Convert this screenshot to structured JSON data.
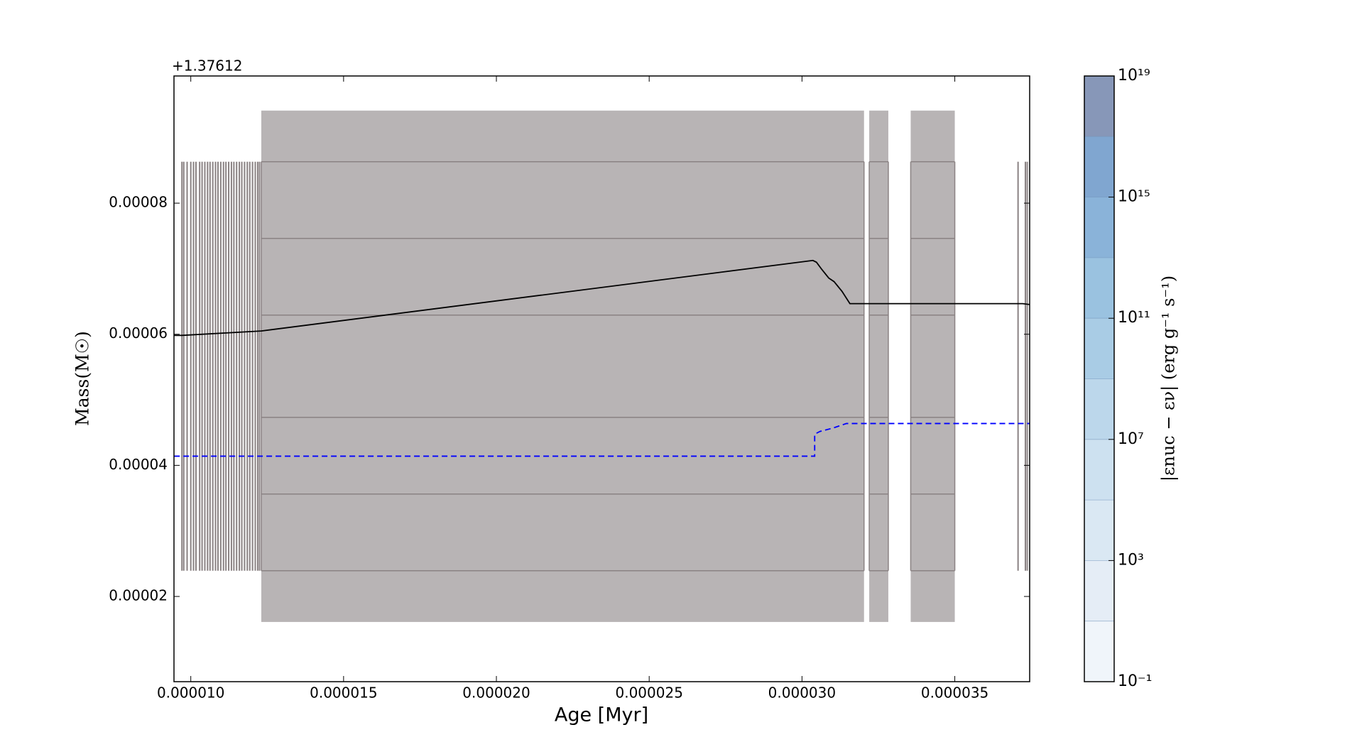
{
  "chart_data": {
    "type": "kippenhahn",
    "xlabel": "Age [Myr]",
    "ylabel": "Mass(M☉)",
    "offset_label": "+1.37612",
    "xlim": [
      9.45e-06,
      3.745e-05
    ],
    "ylim": [
      7e-06,
      9.94e-05
    ],
    "xticks": [
      {
        "value": 1e-05,
        "label": "0.000010"
      },
      {
        "value": 1.5e-05,
        "label": "0.000015"
      },
      {
        "value": 2e-05,
        "label": "0.000020"
      },
      {
        "value": 2.5e-05,
        "label": "0.000025"
      },
      {
        "value": 3e-05,
        "label": "0.000030"
      },
      {
        "value": 3.5e-05,
        "label": "0.000035"
      }
    ],
    "yticks": [
      {
        "value": 2e-05,
        "label": "0.00002"
      },
      {
        "value": 4e-05,
        "label": "0.00004"
      },
      {
        "value": 6e-05,
        "label": "0.00006"
      },
      {
        "value": 8e-05,
        "label": "0.00008"
      }
    ],
    "region_color": "#b8b4b5",
    "contour_color": "#8a8283",
    "regions": [
      {
        "x": [
          1.2307e-05,
          3.203e-05
        ],
        "y": [
          1.611e-05,
          9.412e-05
        ]
      },
      {
        "x": [
          3.22e-05,
          3.2825e-05
        ],
        "y": [
          1.611e-05,
          9.412e-05
        ]
      },
      {
        "x": [
          3.3557e-05,
          3.5e-05
        ],
        "y": [
          1.611e-05,
          9.412e-05
        ]
      }
    ],
    "contour_y": [
      8.632e-05,
      7.462e-05,
      6.292e-05,
      4.732e-05,
      3.562e-05,
      2.392e-05
    ],
    "lines_x": [
      9.71e-06,
      9.77e-06,
      9.88e-06,
      1e-05,
      1.009e-05,
      1.017e-05,
      1.029e-05,
      1.037e-05,
      1.046e-05,
      1.055e-05,
      1.063e-05,
      1.072e-05,
      1.081e-05,
      1.089e-05,
      1.098e-05,
      1.107e-05,
      1.115e-05,
      1.124e-05,
      1.133e-05,
      1.141e-05,
      1.15e-05,
      1.159e-05,
      1.167e-05,
      1.176e-05,
      1.185e-05,
      1.193e-05,
      1.202e-05,
      1.211e-05,
      1.219e-05,
      1.225e-05,
      3.707e-05,
      3.731e-05,
      3.737e-05
    ],
    "series": [
      {
        "color": "#000000",
        "dash": false,
        "x": [
          9.452e-06,
          9.712e-06,
          1.2307e-05,
          3.0357e-05,
          3.0472e-05,
          3.0645e-05,
          3.0876e-05,
          3.1049e-05,
          3.1309e-05,
          3.1568e-05,
          3.722e-05,
          3.7451e-05
        ],
        "values": [
          5.983e-05,
          5.983e-05,
          6.05e-05,
          7.126e-05,
          7.099e-05,
          6.991e-05,
          6.857e-05,
          6.803e-05,
          6.655e-05,
          6.467e-05,
          6.467e-05,
          6.453e-05
        ]
      },
      {
        "color": "#0000ff",
        "dash": true,
        "x": [
          9.452e-06,
          3.0415e-05,
          3.0415e-05,
          3.0588e-05,
          3.102e-05,
          3.1453e-05,
          3.7451e-05
        ],
        "values": [
          4.14e-05,
          4.14e-05,
          4.476e-05,
          4.517e-05,
          4.57e-05,
          4.638e-05,
          4.638e-05
        ]
      }
    ],
    "colorbar": {
      "label": "|εnuc − εν|  (erg g⁻¹ s⁻¹)",
      "log": true,
      "lim": [
        -1,
        19
      ],
      "levels": [
        -1,
        1,
        3,
        5,
        7,
        9,
        11,
        13,
        15,
        17,
        19
      ],
      "colors": [
        "#f0f5fa",
        "#e5edf6",
        "#dae8f3",
        "#cde1f0",
        "#bcd7eb",
        "#a9cce5",
        "#9ac2e0",
        "#8ab3d9",
        "#80a6d0",
        "#8797b8"
      ],
      "ticks": [
        {
          "value": -1,
          "label": "10⁻¹"
        },
        {
          "value": 3,
          "label": "10³"
        },
        {
          "value": 7,
          "label": "10⁷"
        },
        {
          "value": 11,
          "label": "10¹¹"
        },
        {
          "value": 15,
          "label": "10¹⁵"
        },
        {
          "value": 19,
          "label": "10¹⁹"
        }
      ]
    }
  }
}
